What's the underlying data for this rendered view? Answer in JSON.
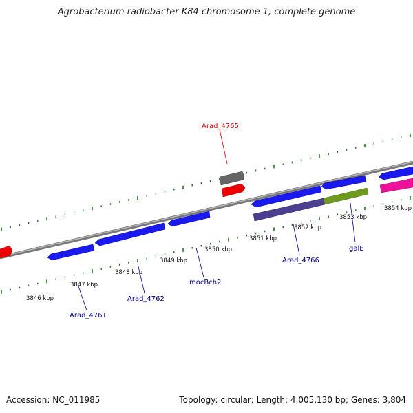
{
  "title": "Agrobacterium radiobacter K84 chromosome 1, complete genome",
  "footer": {
    "accession": "Accession: NC_011985",
    "summary": "Topology: circular; Length: 4,005,130 bp; Genes: 3,804"
  },
  "colors": {
    "backbone": "#808080",
    "tick": "#1a7a1a",
    "gene_blue": "#1a1aee",
    "gene_red": "#ee0000",
    "gene_gray": "#666666",
    "gene_purple": "#4b3f8f",
    "gene_olive": "#6f9a20",
    "gene_pink": "#ee1199",
    "label_blue": "#00008b",
    "label_red": "#cc0000"
  },
  "kbp_labels": [
    "3846 kbp",
    "3847 kbp",
    "3848 kbp",
    "3849 kbp",
    "3850 kbp",
    "3851 kbp",
    "3852 kbp",
    "3853 kbp",
    "3854 kbp"
  ],
  "gene_labels": [
    {
      "text": "Arad_4765",
      "color": "red"
    },
    {
      "text": "Arad_4761",
      "color": "blue"
    },
    {
      "text": "Arad_4762",
      "color": "blue"
    },
    {
      "text": "mocBch2",
      "color": "blue"
    },
    {
      "text": "Arad_4766",
      "color": "blue"
    },
    {
      "text": "galE",
      "color": "blue"
    }
  ]
}
